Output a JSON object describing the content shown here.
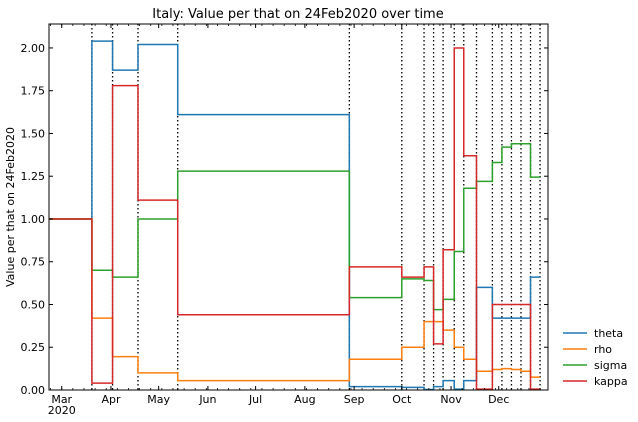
{
  "chart_data": {
    "type": "line",
    "title": "Italy: Value per that on 24Feb2020 over time",
    "ylabel": "Value per that on 24Feb2020",
    "xlabel": "",
    "xlim": [
      "2020-02-22",
      "2021-01-01"
    ],
    "ylim": [
      0,
      2.14
    ],
    "yticks": [
      0.0,
      0.25,
      0.5,
      0.75,
      1.0,
      1.25,
      1.5,
      1.75,
      2.0
    ],
    "ytick_labels": [
      "0.00",
      "0.25",
      "0.50",
      "0.75",
      "1.00",
      "1.25",
      "1.50",
      "1.75",
      "2.00"
    ],
    "xticks": [
      {
        "date": "2020-03-01",
        "label": "Mar",
        "sublabel": "2020"
      },
      {
        "date": "2020-04-01",
        "label": "Apr",
        "sublabel": ""
      },
      {
        "date": "2020-05-01",
        "label": "May",
        "sublabel": ""
      },
      {
        "date": "2020-06-01",
        "label": "Jun",
        "sublabel": ""
      },
      {
        "date": "2020-07-01",
        "label": "Jul",
        "sublabel": ""
      },
      {
        "date": "2020-08-01",
        "label": "Aug",
        "sublabel": ""
      },
      {
        "date": "2020-09-01",
        "label": "Sep",
        "sublabel": ""
      },
      {
        "date": "2020-10-01",
        "label": "Oct",
        "sublabel": ""
      },
      {
        "date": "2020-11-01",
        "label": "Nov",
        "sublabel": ""
      },
      {
        "date": "2020-12-01",
        "label": "Dec",
        "sublabel": ""
      }
    ],
    "change_points": [
      "2020-03-20",
      "2020-04-02",
      "2020-04-18",
      "2020-05-13",
      "2020-08-29",
      "2020-10-01",
      "2020-10-15",
      "2020-10-21",
      "2020-10-27",
      "2020-11-03",
      "2020-11-09",
      "2020-11-17",
      "2020-11-27",
      "2020-12-03",
      "2020-12-09",
      "2020-12-15",
      "2020-12-21",
      "2020-12-27"
    ],
    "grid": false,
    "legend_position": "outside-lower-right",
    "series": [
      {
        "name": "theta",
        "color": "#1f77b4",
        "values": [
          1.0,
          2.04,
          1.87,
          2.02,
          1.61,
          0.02,
          0.015,
          0.003,
          0.02,
          0.055,
          0.005,
          0.055,
          0.6,
          0.42,
          0.42,
          0.42,
          0.42,
          0.66
        ]
      },
      {
        "name": "rho",
        "color": "#ff7f0e",
        "values": [
          1.0,
          0.42,
          0.195,
          0.1,
          0.055,
          0.18,
          0.25,
          0.4,
          0.4,
          0.35,
          0.25,
          0.18,
          0.11,
          0.12,
          0.125,
          0.12,
          0.11,
          0.075
        ]
      },
      {
        "name": "sigma",
        "color": "#2ca02c",
        "values": [
          1.0,
          0.7,
          0.66,
          1.0,
          1.28,
          0.54,
          0.65,
          0.64,
          0.47,
          0.53,
          0.81,
          1.18,
          1.22,
          1.33,
          1.42,
          1.44,
          1.44,
          1.245
        ]
      },
      {
        "name": "kappa",
        "color": "#d62728",
        "values": [
          1.0,
          0.04,
          1.78,
          1.11,
          0.44,
          0.72,
          0.66,
          0.72,
          0.27,
          0.82,
          2.0,
          1.37,
          0.005,
          0.5,
          0.5,
          0.5,
          0.5,
          0.005
        ]
      }
    ]
  }
}
